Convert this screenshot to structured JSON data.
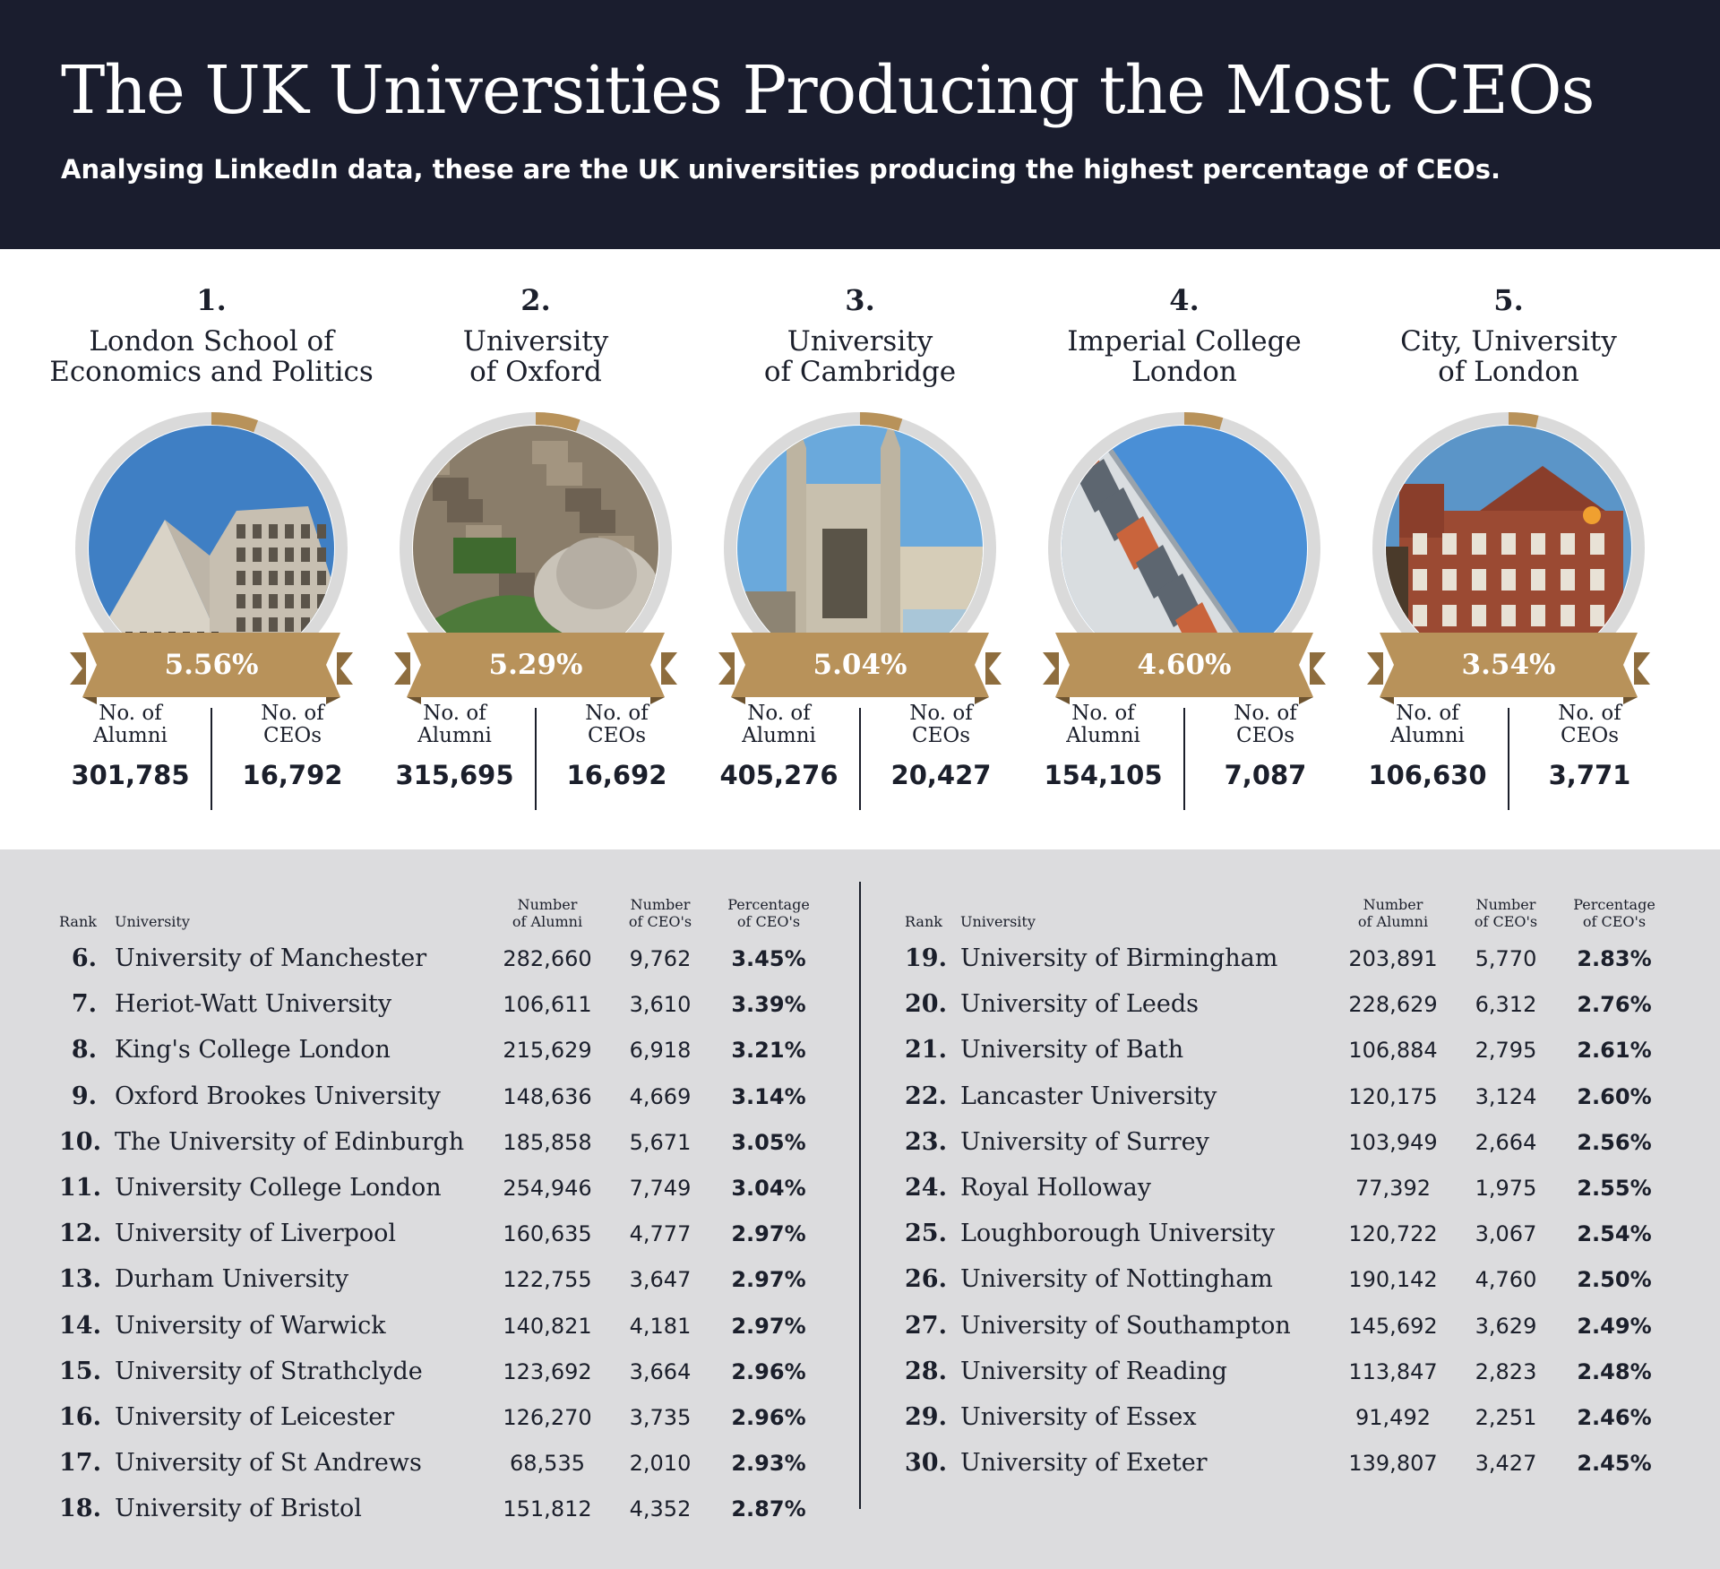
{
  "header": {
    "title": "The UK Universities Producing the Most CEOs",
    "subtitle": "Analysing LinkedIn data, these are the UK universities producing the highest percentage of CEOs."
  },
  "colors": {
    "header_bg": "#1a1d2e",
    "gold": "#b8925a",
    "ring_gray": "#dadada",
    "table_bg": "#dcdcde"
  },
  "top5": [
    {
      "rank": "1.",
      "name_line1": "London School of",
      "name_line2": "Economics and Politics",
      "pct_label": "5.56%",
      "pct": 5.56,
      "alumni_label_1": "No. of",
      "alumni_label_2": "Alumni",
      "alumni": "301,785",
      "ceos_label_1": "No. of",
      "ceos_label_2": "CEOs",
      "ceos": "16,792",
      "photo": "modern-concrete-buildings"
    },
    {
      "rank": "2.",
      "name_line1": "University",
      "name_line2": "of Oxford",
      "pct_label": "5.29%",
      "pct": 5.29,
      "alumni_label_1": "No. of",
      "alumni_label_2": "Alumni",
      "alumni": "315,695",
      "ceos_label_1": "No. of",
      "ceos_label_2": "CEOs",
      "ceos": "16,692",
      "photo": "aerial-oxford-radcliffe-camera"
    },
    {
      "rank": "3.",
      "name_line1": "University",
      "name_line2": "of Cambridge",
      "pct_label": "5.04%",
      "pct": 5.04,
      "alumni_label_1": "No. of",
      "alumni_label_2": "Alumni",
      "alumni": "405,276",
      "ceos_label_1": "No. of",
      "ceos_label_2": "CEOs",
      "ceos": "20,427",
      "photo": "kings-college-chapel"
    },
    {
      "rank": "4.",
      "name_line1": "Imperial College",
      "name_line2": "London",
      "pct_label": "4.60%",
      "pct": 4.6,
      "alumni_label_1": "No. of",
      "alumni_label_2": "Alumni",
      "alumni": "154,105",
      "ceos_label_1": "No. of",
      "ceos_label_2": "CEOs",
      "ceos": "7,087",
      "photo": "glass-building-facade"
    },
    {
      "rank": "5.",
      "name_line1": "City, University",
      "name_line2": "of London",
      "pct_label": "3.54%",
      "pct": 3.54,
      "alumni_label_1": "No. of",
      "alumni_label_2": "Alumni",
      "alumni": "106,630",
      "ceos_label_1": "No. of",
      "ceos_label_2": "CEOs",
      "ceos": "3,771",
      "photo": "red-brick-building"
    }
  ],
  "table_headers": {
    "rank": "Rank",
    "university": "University",
    "alumni_1": "Number",
    "alumni_2": "of Alumni",
    "ceos_1": "Number",
    "ceos_2": "of CEO's",
    "pct_1": "Percentage",
    "pct_2": "of CEO's"
  },
  "table_left": [
    {
      "rank": "6.",
      "university": "University of Manchester",
      "alumni": "282,660",
      "ceos": "9,762",
      "pct": "3.45%"
    },
    {
      "rank": "7.",
      "university": "Heriot-Watt University",
      "alumni": "106,611",
      "ceos": "3,610",
      "pct": "3.39%"
    },
    {
      "rank": "8.",
      "university": "King's College London",
      "alumni": "215,629",
      "ceos": "6,918",
      "pct": "3.21%"
    },
    {
      "rank": "9.",
      "university": "Oxford Brookes University",
      "alumni": "148,636",
      "ceos": "4,669",
      "pct": "3.14%"
    },
    {
      "rank": "10.",
      "university": "The University of Edinburgh",
      "alumni": "185,858",
      "ceos": "5,671",
      "pct": "3.05%"
    },
    {
      "rank": "11.",
      "university": "University College London",
      "alumni": "254,946",
      "ceos": "7,749",
      "pct": "3.04%"
    },
    {
      "rank": "12.",
      "university": "University of Liverpool",
      "alumni": "160,635",
      "ceos": "4,777",
      "pct": "2.97%"
    },
    {
      "rank": "13.",
      "university": "Durham University",
      "alumni": "122,755",
      "ceos": "3,647",
      "pct": "2.97%"
    },
    {
      "rank": "14.",
      "university": "University of Warwick",
      "alumni": "140,821",
      "ceos": "4,181",
      "pct": "2.97%"
    },
    {
      "rank": "15.",
      "university": "University of Strathclyde",
      "alumni": "123,692",
      "ceos": "3,664",
      "pct": "2.96%"
    },
    {
      "rank": "16.",
      "university": "University of Leicester",
      "alumni": "126,270",
      "ceos": "3,735",
      "pct": "2.96%"
    },
    {
      "rank": "17.",
      "university": "University of St Andrews",
      "alumni": "68,535",
      "ceos": "2,010",
      "pct": "2.93%"
    },
    {
      "rank": "18.",
      "university": "University of Bristol",
      "alumni": "151,812",
      "ceos": "4,352",
      "pct": "2.87%"
    }
  ],
  "table_right": [
    {
      "rank": "19.",
      "university": "University of Birmingham",
      "alumni": "203,891",
      "ceos": "5,770",
      "pct": "2.83%"
    },
    {
      "rank": "20.",
      "university": "University of Leeds",
      "alumni": "228,629",
      "ceos": "6,312",
      "pct": "2.76%"
    },
    {
      "rank": "21.",
      "university": "University of Bath",
      "alumni": "106,884",
      "ceos": "2,795",
      "pct": "2.61%"
    },
    {
      "rank": "22.",
      "university": "Lancaster University",
      "alumni": "120,175",
      "ceos": "3,124",
      "pct": "2.60%"
    },
    {
      "rank": "23.",
      "university": "University of Surrey",
      "alumni": "103,949",
      "ceos": "2,664",
      "pct": "2.56%"
    },
    {
      "rank": "24.",
      "university": "Royal Holloway",
      "alumni": "77,392",
      "ceos": "1,975",
      "pct": "2.55%"
    },
    {
      "rank": "25.",
      "university": "Loughborough University",
      "alumni": "120,722",
      "ceos": "3,067",
      "pct": "2.54%"
    },
    {
      "rank": "26.",
      "university": "University of Nottingham",
      "alumni": "190,142",
      "ceos": "4,760",
      "pct": "2.50%"
    },
    {
      "rank": "27.",
      "university": "University of Southampton",
      "alumni": "145,692",
      "ceos": "3,629",
      "pct": "2.49%"
    },
    {
      "rank": "28.",
      "university": "University of Reading",
      "alumni": "113,847",
      "ceos": "2,823",
      "pct": "2.48%"
    },
    {
      "rank": "29.",
      "university": "University of Essex",
      "alumni": "91,492",
      "ceos": "2,251",
      "pct": "2.46%"
    },
    {
      "rank": "30.",
      "university": "University of Exeter",
      "alumni": "139,807",
      "ceos": "3,427",
      "pct": "2.45%"
    }
  ],
  "chart_data": {
    "type": "table",
    "title": "The UK Universities Producing the Most CEOs",
    "subtitle": "Analysing LinkedIn data, these are the UK universities producing the highest percentage of CEOs.",
    "columns": [
      "Rank",
      "University",
      "Number of Alumni",
      "Number of CEO's",
      "Percentage of CEO's"
    ],
    "rows": [
      [
        1,
        "London School of Economics and Politics",
        301785,
        16792,
        5.56
      ],
      [
        2,
        "University of Oxford",
        315695,
        16692,
        5.29
      ],
      [
        3,
        "University of Cambridge",
        405276,
        20427,
        5.04
      ],
      [
        4,
        "Imperial College London",
        154105,
        7087,
        4.6
      ],
      [
        5,
        "City, University of London",
        106630,
        3771,
        3.54
      ],
      [
        6,
        "University of Manchester",
        282660,
        9762,
        3.45
      ],
      [
        7,
        "Heriot-Watt University",
        106611,
        3610,
        3.39
      ],
      [
        8,
        "King's College London",
        215629,
        6918,
        3.21
      ],
      [
        9,
        "Oxford Brookes University",
        148636,
        4669,
        3.14
      ],
      [
        10,
        "The University of Edinburgh",
        185858,
        5671,
        3.05
      ],
      [
        11,
        "University College London",
        254946,
        7749,
        3.04
      ],
      [
        12,
        "University of Liverpool",
        160635,
        4777,
        2.97
      ],
      [
        13,
        "Durham University",
        122755,
        3647,
        2.97
      ],
      [
        14,
        "University of Warwick",
        140821,
        4181,
        2.97
      ],
      [
        15,
        "University of Strathclyde",
        123692,
        3664,
        2.96
      ],
      [
        16,
        "University of Leicester",
        126270,
        3735,
        2.96
      ],
      [
        17,
        "University of St Andrews",
        68535,
        2010,
        2.93
      ],
      [
        18,
        "University of Bristol",
        151812,
        4352,
        2.87
      ],
      [
        19,
        "University of Birmingham",
        203891,
        5770,
        2.83
      ],
      [
        20,
        "University of Leeds",
        228629,
        6312,
        2.76
      ],
      [
        21,
        "University of Bath",
        106884,
        2795,
        2.61
      ],
      [
        22,
        "Lancaster University",
        120175,
        3124,
        2.6
      ],
      [
        23,
        "University of Surrey",
        103949,
        2664,
        2.56
      ],
      [
        24,
        "Royal Holloway",
        77392,
        1975,
        2.55
      ],
      [
        25,
        "Loughborough University",
        120722,
        3067,
        2.54
      ],
      [
        26,
        "University of Nottingham",
        190142,
        4760,
        2.5
      ],
      [
        27,
        "University of Southampton",
        145692,
        3629,
        2.49
      ],
      [
        28,
        "University of Reading",
        113847,
        2823,
        2.48
      ],
      [
        29,
        "University of Essex",
        91492,
        2251,
        2.46
      ],
      [
        30,
        "University of Exeter",
        139807,
        3427,
        2.45
      ]
    ]
  }
}
